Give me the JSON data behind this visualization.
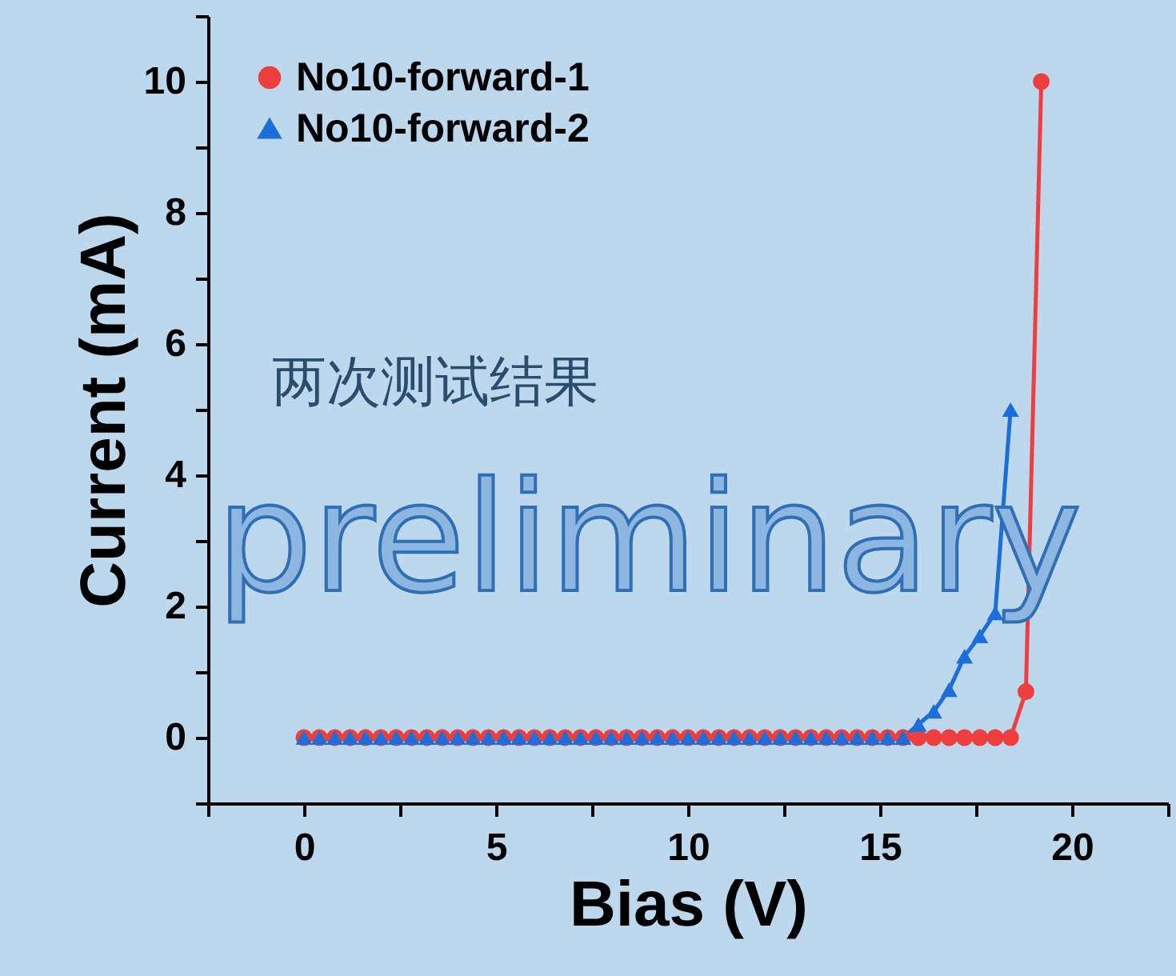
{
  "chart_data": {
    "type": "line",
    "xlabel": "Bias (V)",
    "ylabel": "Current (mA)",
    "xlim": [
      -2.5,
      22.5
    ],
    "xticks": [
      0,
      5,
      10,
      15,
      20,
      {
        "value": -2.5,
        "label": null
      },
      {
        "value": 2.5,
        "label": null
      },
      {
        "value": 7.5,
        "label": null
      },
      {
        "value": 12.5,
        "label": null
      },
      {
        "value": 17.5,
        "label": null
      },
      {
        "value": 22.5,
        "label": null
      }
    ],
    "ylim": [
      -1,
      11
    ],
    "yticks": [
      0,
      2,
      4,
      6,
      8,
      10,
      {
        "value": -1,
        "label": null
      },
      {
        "value": 1,
        "label": null
      },
      {
        "value": 3,
        "label": null
      },
      {
        "value": 5,
        "label": null
      },
      {
        "value": 7,
        "label": null
      },
      {
        "value": 9,
        "label": null
      },
      {
        "value": 11,
        "label": null
      }
    ],
    "grid": false,
    "legend": "top left",
    "line_style": "solid",
    "annotations": [
      "两次测试结果",
      "preliminary"
    ],
    "series": [
      {
        "name": "No10-forward-1",
        "color": "#ef3e3e",
        "marker": "circle",
        "x": [
          0,
          0.4,
          0.8,
          1.2,
          1.6,
          2,
          2.4,
          2.8,
          3.2,
          3.6,
          4,
          4.4,
          4.8,
          5.2,
          5.6,
          6,
          6.4,
          6.8,
          7.2,
          7.6,
          8,
          8.4,
          8.8,
          9.2,
          9.6,
          10,
          10.4,
          10.8,
          11.2,
          11.6,
          12,
          12.4,
          12.8,
          13.2,
          13.6,
          14,
          14.4,
          14.8,
          15.2,
          15.6,
          16,
          16.4,
          16.8,
          17.2,
          17.6,
          18,
          18.4,
          18.8,
          19.2
        ],
        "values": [
          0,
          0,
          0,
          0,
          0,
          0,
          0,
          0,
          0,
          0,
          0,
          0,
          0,
          0,
          0,
          0,
          0,
          0,
          0,
          0,
          0,
          0,
          0,
          0,
          0,
          0,
          0,
          0,
          0,
          0,
          0,
          0,
          0,
          0,
          0,
          0,
          0,
          0,
          0,
          0,
          0,
          0,
          0,
          0,
          0,
          0,
          0,
          0.7,
          10
        ]
      },
      {
        "name": "No10-forward-2",
        "color": "#1a6fdc",
        "marker": "triangle",
        "x": [
          0,
          0.4,
          0.8,
          1.2,
          1.6,
          2,
          2.4,
          2.8,
          3.2,
          3.6,
          4,
          4.4,
          4.8,
          5.2,
          5.6,
          6,
          6.4,
          6.8,
          7.2,
          7.6,
          8,
          8.4,
          8.8,
          9.2,
          9.6,
          10,
          10.4,
          10.8,
          11.2,
          11.6,
          12,
          12.4,
          12.8,
          13.2,
          13.6,
          14,
          14.4,
          14.8,
          15.2,
          15.6,
          16,
          16.4,
          16.8,
          17.2,
          17.6,
          18,
          18.4
        ],
        "values": [
          0,
          0,
          0,
          0,
          0,
          0,
          0,
          0,
          0,
          0,
          0,
          0,
          0,
          0,
          0,
          0,
          0,
          0,
          0,
          0,
          0,
          0,
          0,
          0,
          0,
          0,
          0,
          0,
          0,
          0,
          0,
          0,
          0,
          0,
          0,
          0,
          0,
          0,
          0,
          0,
          0.2,
          0.4,
          0.73,
          1.24,
          1.55,
          1.9,
          5.0
        ]
      }
    ]
  }
}
